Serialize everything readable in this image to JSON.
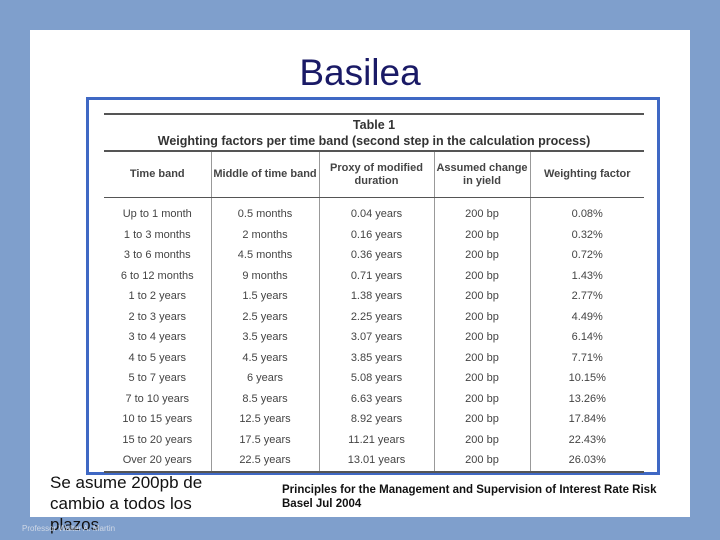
{
  "slide": {
    "title": "Basilea",
    "left_note": "Se asume 200pb de cambio a todos los plazos",
    "source_note": "Principles for the Management and Supervision of Interest Rate Risk Basel Jul 2004",
    "footer": "Professor Walter A. Martin"
  },
  "table": {
    "caption_line1": "Table 1",
    "caption_line2": "Weighting factors per time band (second step in the calculation process)",
    "headers": [
      "Time band",
      "Middle of time band",
      "Proxy of modified duration",
      "Assumed change in yield",
      "Weighting factor"
    ],
    "rows": [
      [
        "Up to 1 month",
        "0.5 months",
        "0.04 years",
        "200 bp",
        "0.08%"
      ],
      [
        "1 to 3 months",
        "2 months",
        "0.16 years",
        "200 bp",
        "0.32%"
      ],
      [
        "3 to 6 months",
        "4.5 months",
        "0.36 years",
        "200 bp",
        "0.72%"
      ],
      [
        "6 to 12 months",
        "9 months",
        "0.71 years",
        "200 bp",
        "1.43%"
      ],
      [
        "1 to 2 years",
        "1.5 years",
        "1.38 years",
        "200 bp",
        "2.77%"
      ],
      [
        "2 to 3 years",
        "2.5 years",
        "2.25 years",
        "200 bp",
        "4.49%"
      ],
      [
        "3 to 4 years",
        "3.5 years",
        "3.07 years",
        "200 bp",
        "6.14%"
      ],
      [
        "4 to 5 years",
        "4.5 years",
        "3.85 years",
        "200 bp",
        "7.71%"
      ],
      [
        "5 to 7 years",
        "6 years",
        "5.08 years",
        "200 bp",
        "10.15%"
      ],
      [
        "7 to 10 years",
        "8.5 years",
        "6.63 years",
        "200 bp",
        "13.26%"
      ],
      [
        "10 to 15 years",
        "12.5 years",
        "8.92 years",
        "200 bp",
        "17.84%"
      ],
      [
        "15 to 20 years",
        "17.5 years",
        "11.21 years",
        "200 bp",
        "22.43%"
      ],
      [
        "Over 20 years",
        "22.5 years",
        "13.01 years",
        "200 bp",
        "26.03%"
      ]
    ]
  }
}
